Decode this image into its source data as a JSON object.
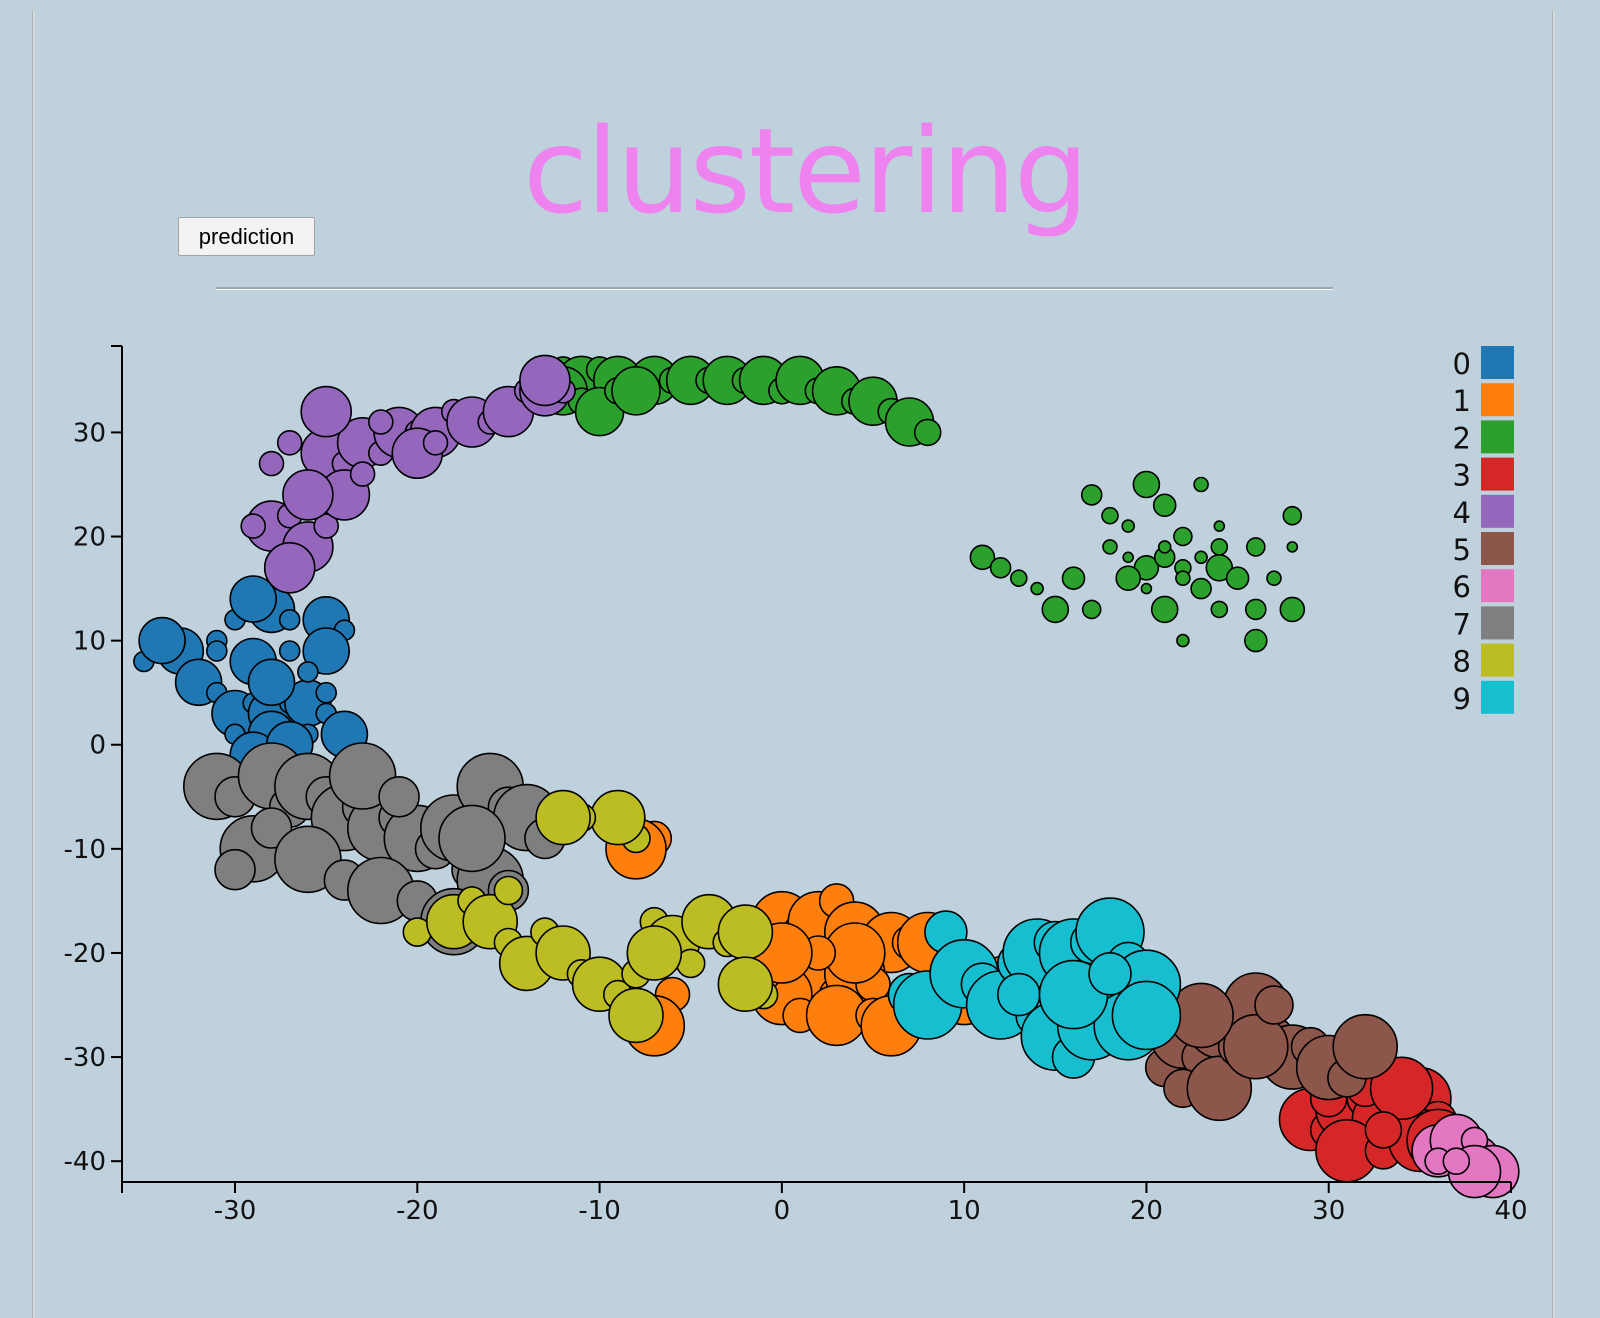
{
  "page": {
    "title": "clustering",
    "prediction_button": "prediction"
  },
  "colors": [
    "#1f77b4",
    "#ff7f0e",
    "#2ca02c",
    "#d62728",
    "#9467bd",
    "#8c564b",
    "#e377c2",
    "#7f7f7f",
    "#bcbd22",
    "#17becf"
  ],
  "chart_data": {
    "type": "scatter",
    "title": "clustering",
    "xlabel": "",
    "ylabel": "",
    "xlim": [
      -36.2,
      40.0
    ],
    "ylim": [
      -42.0,
      38.3
    ],
    "xticks": [
      -30,
      -20,
      -10,
      0,
      10,
      20,
      30,
      40
    ],
    "yticks": [
      30,
      20,
      10,
      0,
      -10,
      -20,
      -30,
      -40
    ],
    "legend": [
      "0",
      "1",
      "2",
      "3",
      "4",
      "5",
      "6",
      "7",
      "8",
      "9"
    ],
    "legend_position": "top-right",
    "series": [
      {
        "name": "0",
        "points": [
          [
            -35,
            8
          ],
          [
            -33,
            9
          ],
          [
            -31,
            10
          ],
          [
            -32,
            6
          ],
          [
            -30,
            12
          ],
          [
            -28,
            13
          ],
          [
            -27,
            12
          ],
          [
            -25,
            12
          ],
          [
            -24,
            11
          ],
          [
            -25,
            9
          ],
          [
            -27,
            9
          ],
          [
            -29,
            8
          ],
          [
            -31,
            5
          ],
          [
            -30,
            3
          ],
          [
            -29,
            4
          ],
          [
            -28,
            3
          ],
          [
            -27,
            4
          ],
          [
            -26,
            4
          ],
          [
            -25,
            3
          ],
          [
            -24,
            1
          ],
          [
            -26,
            1
          ],
          [
            -28,
            1
          ],
          [
            -30,
            1
          ],
          [
            -29,
            -1
          ],
          [
            -32,
            -3
          ],
          [
            -28,
            6
          ],
          [
            -26,
            7
          ],
          [
            -34,
            10
          ],
          [
            -31,
            9
          ],
          [
            -29,
            14
          ],
          [
            -25,
            5
          ],
          [
            -27,
            0
          ]
        ]
      },
      {
        "name": "1",
        "points": [
          [
            -7,
            -9
          ],
          [
            -8,
            -10
          ],
          [
            -6,
            -24
          ],
          [
            -7,
            -27
          ],
          [
            -1,
            -19
          ],
          [
            0,
            -17
          ],
          [
            1,
            -18
          ],
          [
            2,
            -17
          ],
          [
            3,
            -15
          ],
          [
            4,
            -18
          ],
          [
            5,
            -20
          ],
          [
            6,
            -19
          ],
          [
            7,
            -19
          ],
          [
            8,
            -19
          ],
          [
            1,
            -22
          ],
          [
            2,
            -23
          ],
          [
            3,
            -24
          ],
          [
            4,
            -22
          ],
          [
            5,
            -23
          ],
          [
            0,
            -24
          ],
          [
            1,
            -26
          ],
          [
            3,
            -26
          ],
          [
            5,
            -26
          ],
          [
            6,
            -27
          ],
          [
            -1,
            -22
          ],
          [
            10,
            -24
          ],
          [
            12,
            -22
          ],
          [
            4,
            -20
          ],
          [
            2,
            -20
          ],
          [
            0,
            -20
          ]
        ]
      },
      {
        "name": "2",
        "points": [
          [
            -12,
            36
          ],
          [
            -11,
            35
          ],
          [
            -10,
            36
          ],
          [
            -9,
            35
          ],
          [
            -8,
            35
          ],
          [
            -7,
            35
          ],
          [
            -6,
            35
          ],
          [
            -5,
            35
          ],
          [
            -4,
            35
          ],
          [
            -3,
            35
          ],
          [
            -2,
            35
          ],
          [
            -1,
            35
          ],
          [
            0,
            34
          ],
          [
            1,
            35
          ],
          [
            2,
            34
          ],
          [
            3,
            34
          ],
          [
            4,
            33
          ],
          [
            5,
            33
          ],
          [
            6,
            32
          ],
          [
            7,
            31
          ],
          [
            8,
            30
          ],
          [
            -12,
            34
          ],
          [
            -11,
            33
          ],
          [
            -10,
            32
          ],
          [
            -9,
            34
          ],
          [
            -8,
            34
          ],
          [
            17,
            24
          ],
          [
            18,
            22
          ],
          [
            19,
            21
          ],
          [
            20,
            25
          ],
          [
            21,
            23
          ],
          [
            22,
            20
          ],
          [
            23,
            25
          ],
          [
            24,
            21
          ],
          [
            11,
            18
          ],
          [
            12,
            17
          ],
          [
            13,
            16
          ],
          [
            14,
            15
          ],
          [
            15,
            13
          ],
          [
            16,
            16
          ],
          [
            17,
            13
          ],
          [
            18,
            19
          ],
          [
            19,
            18
          ],
          [
            20,
            17
          ],
          [
            21,
            18
          ],
          [
            22,
            17
          ],
          [
            23,
            18
          ],
          [
            24,
            17
          ],
          [
            25,
            16
          ],
          [
            26,
            19
          ],
          [
            27,
            16
          ],
          [
            28,
            19
          ],
          [
            28,
            13
          ],
          [
            26,
            13
          ],
          [
            24,
            13
          ],
          [
            22,
            10
          ],
          [
            21,
            13
          ],
          [
            26,
            10
          ],
          [
            28,
            22
          ],
          [
            22,
            16
          ],
          [
            20,
            15
          ],
          [
            19,
            16
          ],
          [
            23,
            15
          ],
          [
            24,
            19
          ],
          [
            21,
            19
          ]
        ]
      },
      {
        "name": "3",
        "points": [
          [
            29,
            -36
          ],
          [
            30,
            -37
          ],
          [
            31,
            -35
          ],
          [
            32,
            -34
          ],
          [
            33,
            -36
          ],
          [
            34,
            -37
          ],
          [
            35,
            -34
          ],
          [
            36,
            -36
          ],
          [
            31,
            -39
          ],
          [
            33,
            -39
          ],
          [
            35,
            -38
          ],
          [
            32,
            -33
          ],
          [
            34,
            -33
          ],
          [
            30,
            -34
          ],
          [
            36,
            -38
          ],
          [
            33,
            -37
          ]
        ]
      },
      {
        "name": "4",
        "points": [
          [
            -27,
            29
          ],
          [
            -25,
            28
          ],
          [
            -24,
            27
          ],
          [
            -23,
            29
          ],
          [
            -22,
            28
          ],
          [
            -21,
            30
          ],
          [
            -20,
            30
          ],
          [
            -19,
            30
          ],
          [
            -18,
            32
          ],
          [
            -17,
            31
          ],
          [
            -16,
            31
          ],
          [
            -15,
            32
          ],
          [
            -14,
            34
          ],
          [
            -13,
            34
          ],
          [
            -12,
            34
          ],
          [
            -28,
            21
          ],
          [
            -27,
            22
          ],
          [
            -26,
            19
          ],
          [
            -25,
            21
          ],
          [
            -24,
            24
          ],
          [
            -23,
            26
          ],
          [
            -26,
            24
          ],
          [
            -28,
            27
          ],
          [
            -27,
            17
          ],
          [
            -29,
            21
          ],
          [
            -25,
            32
          ],
          [
            -22,
            31
          ],
          [
            -20,
            28
          ],
          [
            -19,
            29
          ],
          [
            -13,
            35
          ]
        ]
      },
      {
        "name": "5",
        "points": [
          [
            21,
            -31
          ],
          [
            22,
            -28
          ],
          [
            23,
            -30
          ],
          [
            24,
            -27
          ],
          [
            25,
            -26
          ],
          [
            26,
            -25
          ],
          [
            27,
            -28
          ],
          [
            28,
            -30
          ],
          [
            29,
            -29
          ],
          [
            30,
            -31
          ],
          [
            31,
            -32
          ],
          [
            32,
            -29
          ],
          [
            22,
            -33
          ],
          [
            24,
            -33
          ],
          [
            25,
            -29
          ],
          [
            26,
            -29
          ],
          [
            27,
            -25
          ],
          [
            23,
            -26
          ]
        ]
      },
      {
        "name": "6",
        "points": [
          [
            36,
            -39
          ],
          [
            37,
            -39
          ],
          [
            38,
            -40
          ],
          [
            39,
            -40
          ],
          [
            37,
            -38
          ],
          [
            38,
            -38
          ],
          [
            39,
            -41
          ],
          [
            36,
            -40
          ],
          [
            38,
            -41
          ],
          [
            37,
            -40
          ]
        ]
      },
      {
        "name": "7",
        "points": [
          [
            -31,
            -4
          ],
          [
            -30,
            -5
          ],
          [
            -28,
            -3
          ],
          [
            -27,
            -6
          ],
          [
            -26,
            -4
          ],
          [
            -25,
            -5
          ],
          [
            -24,
            -7
          ],
          [
            -23,
            -6
          ],
          [
            -22,
            -8
          ],
          [
            -21,
            -7
          ],
          [
            -20,
            -9
          ],
          [
            -19,
            -10
          ],
          [
            -18,
            -8
          ],
          [
            -17,
            -12
          ],
          [
            -16,
            -13
          ],
          [
            -15,
            -14
          ],
          [
            -29,
            -10
          ],
          [
            -28,
            -8
          ],
          [
            -26,
            -11
          ],
          [
            -24,
            -13
          ],
          [
            -22,
            -14
          ],
          [
            -20,
            -15
          ],
          [
            -18,
            -17
          ],
          [
            -30,
            -12
          ],
          [
            -16,
            -4
          ],
          [
            -15,
            -6
          ],
          [
            -14,
            -7
          ],
          [
            -13,
            -9
          ],
          [
            -23,
            -3
          ],
          [
            -21,
            -5
          ],
          [
            -17,
            -9
          ]
        ]
      },
      {
        "name": "8",
        "points": [
          [
            -20,
            -18
          ],
          [
            -18,
            -17
          ],
          [
            -17,
            -15
          ],
          [
            -16,
            -17
          ],
          [
            -15,
            -19
          ],
          [
            -14,
            -21
          ],
          [
            -13,
            -18
          ],
          [
            -12,
            -20
          ],
          [
            -11,
            -22
          ],
          [
            -10,
            -23
          ],
          [
            -9,
            -24
          ],
          [
            -8,
            -26
          ],
          [
            -8,
            -9
          ],
          [
            -9,
            -7
          ],
          [
            -11,
            -7
          ],
          [
            -12,
            -7
          ],
          [
            -7,
            -17
          ],
          [
            -6,
            -19
          ],
          [
            -5,
            -21
          ],
          [
            -4,
            -17
          ],
          [
            -3,
            -19
          ],
          [
            -2,
            -18
          ],
          [
            -1,
            -24
          ],
          [
            -2,
            -23
          ],
          [
            -8,
            -22
          ],
          [
            -7,
            -20
          ],
          [
            -15,
            -14
          ]
        ]
      },
      {
        "name": "9",
        "points": [
          [
            7,
            -24
          ],
          [
            8,
            -25
          ],
          [
            9,
            -18
          ],
          [
            10,
            -22
          ],
          [
            11,
            -23
          ],
          [
            12,
            -25
          ],
          [
            13,
            -21
          ],
          [
            14,
            -20
          ],
          [
            15,
            -19
          ],
          [
            16,
            -20
          ],
          [
            17,
            -19
          ],
          [
            18,
            -18
          ],
          [
            19,
            -21
          ],
          [
            20,
            -23
          ],
          [
            14,
            -26
          ],
          [
            15,
            -28
          ],
          [
            16,
            -30
          ],
          [
            17,
            -27
          ],
          [
            18,
            -25
          ],
          [
            19,
            -27
          ],
          [
            13,
            -24
          ],
          [
            16,
            -24
          ],
          [
            18,
            -22
          ],
          [
            20,
            -26
          ]
        ]
      }
    ]
  }
}
